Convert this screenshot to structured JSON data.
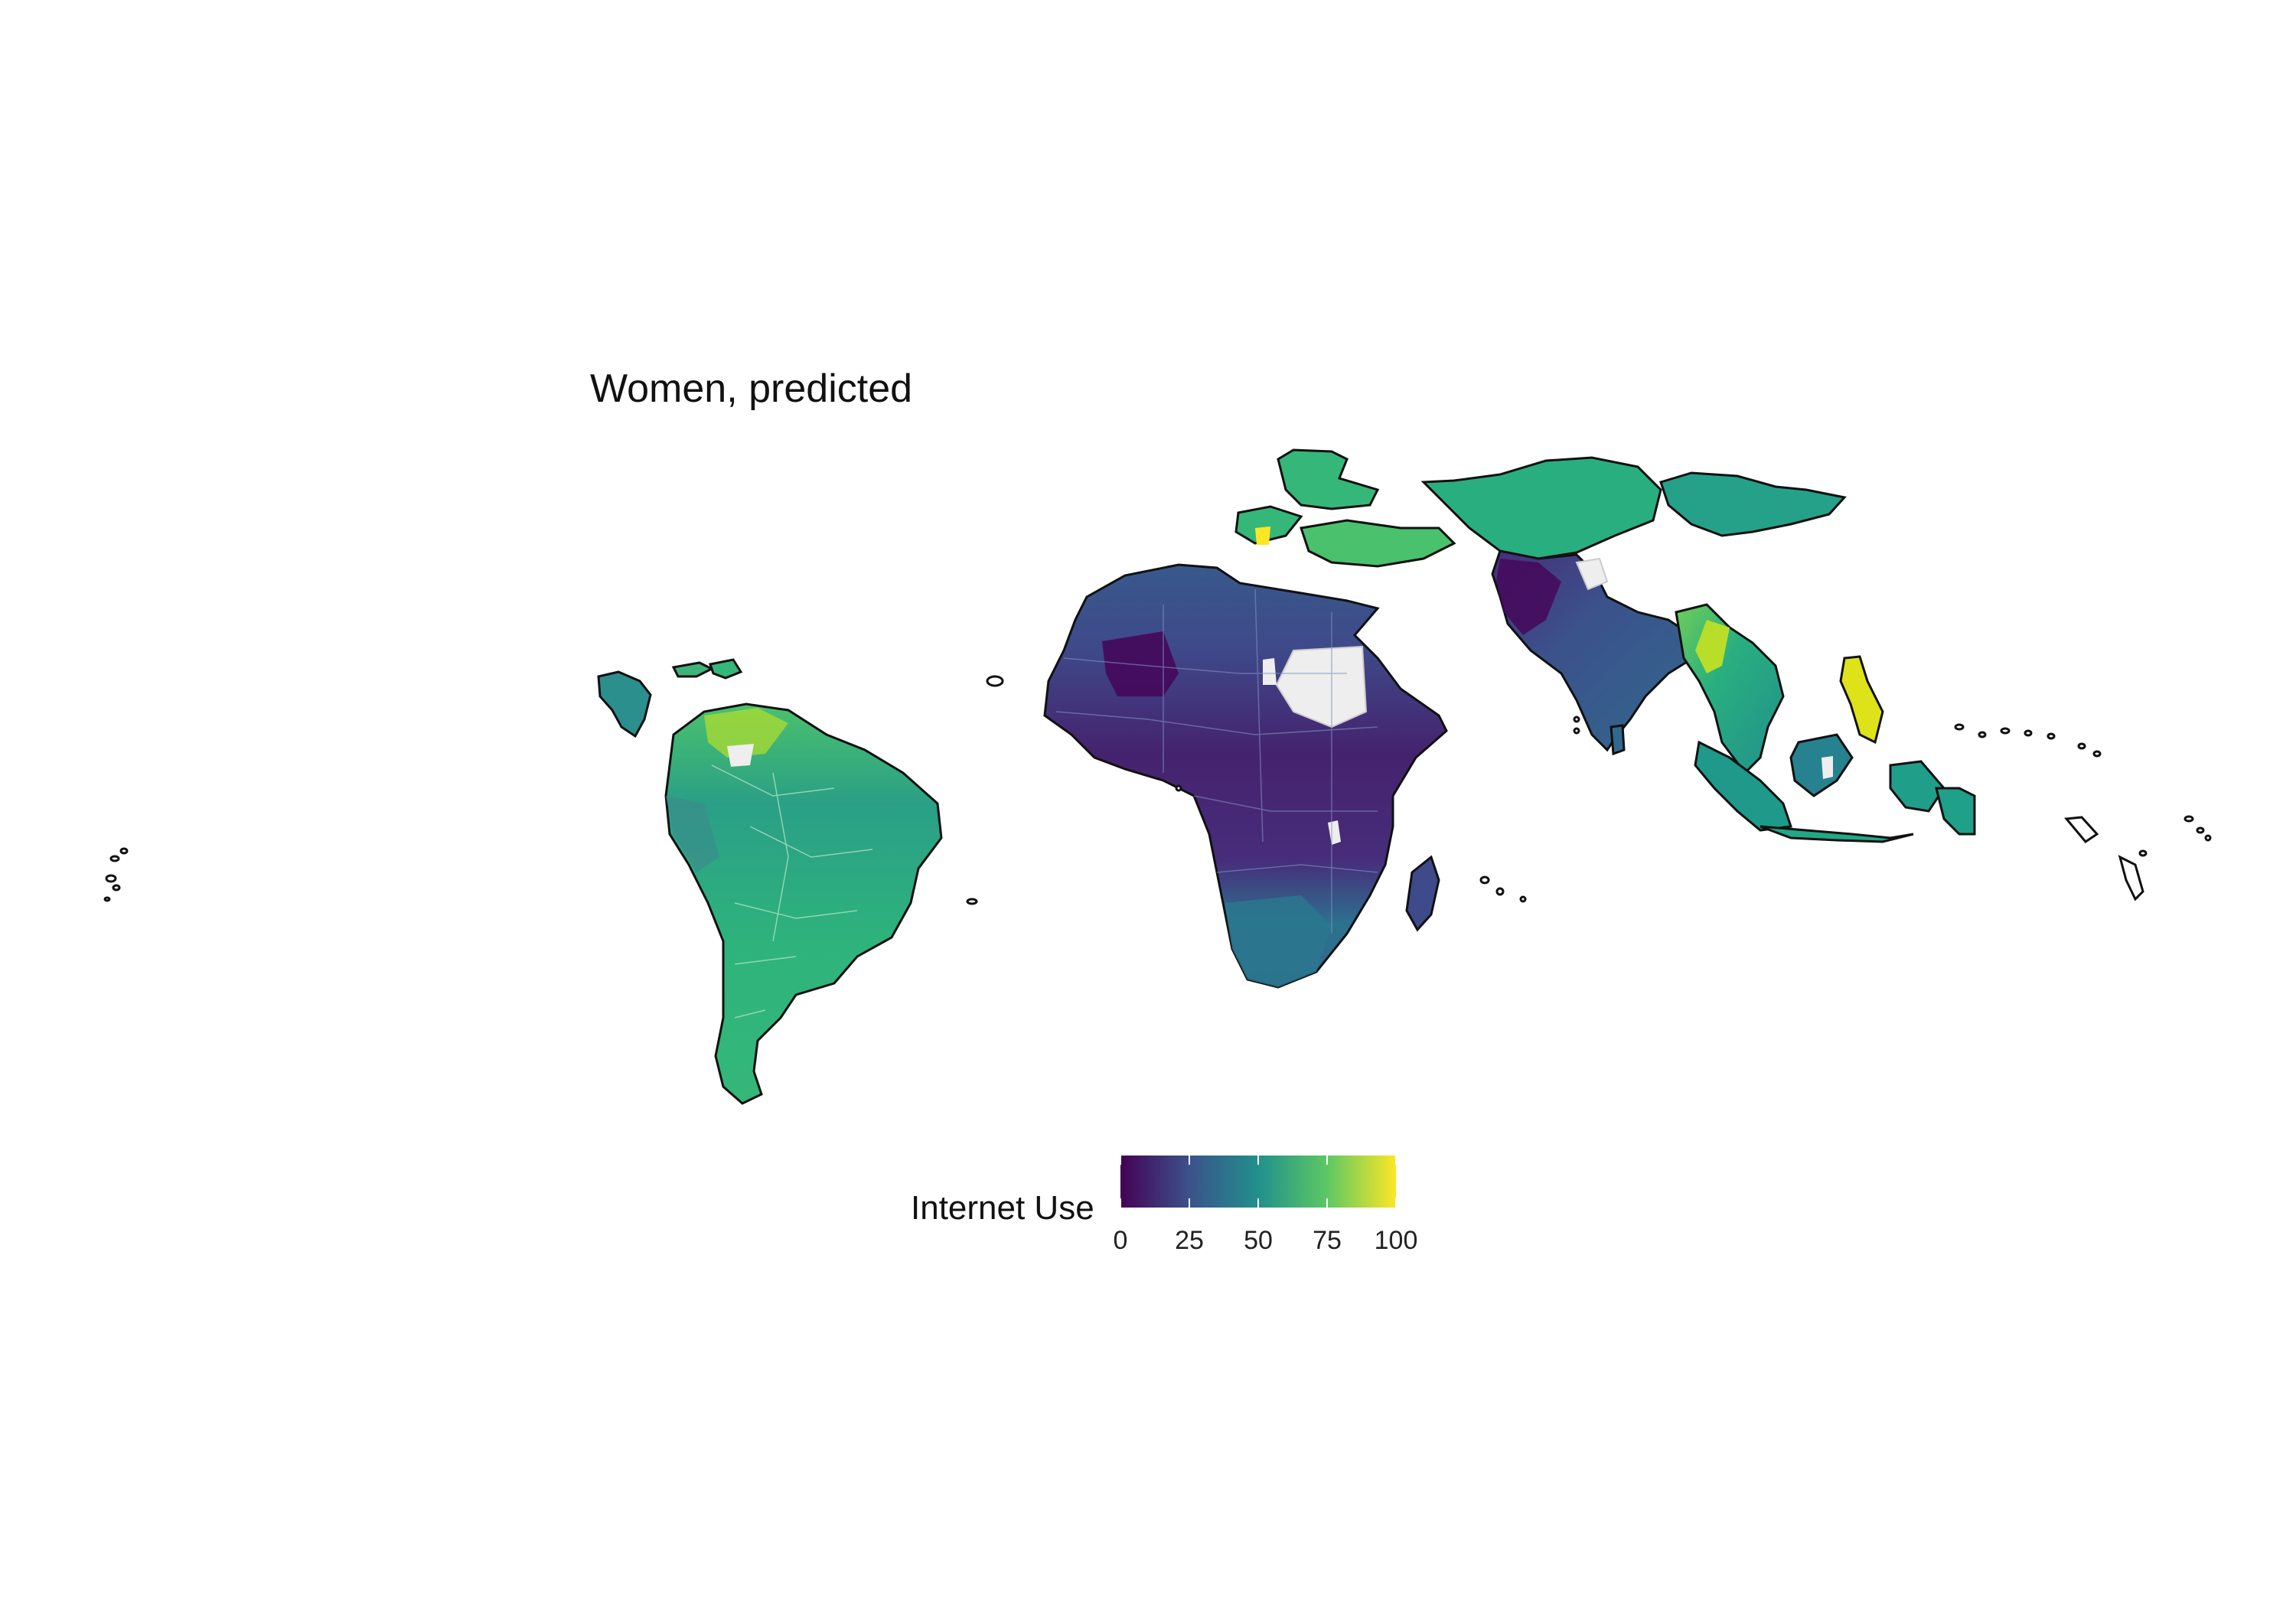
{
  "title": "Women, predicted",
  "legend": {
    "title": "Internet Use",
    "ticks": [
      "0",
      "25",
      "50",
      "75",
      "100"
    ],
    "tick_values": [
      0,
      25,
      50,
      75,
      100
    ],
    "range": [
      0,
      100
    ],
    "colors": [
      "#440154",
      "#3b528b",
      "#21908c",
      "#5dc863",
      "#fde725"
    ]
  },
  "map": {
    "no_data_color": "#eeeeee",
    "outline_color": "#111111",
    "regions": [
      {
        "name": "South America",
        "value": 60
      },
      {
        "name": "Africa",
        "value": 22
      },
      {
        "name": "Europe & Central Asia",
        "value": 60
      },
      {
        "name": "South Asia",
        "value": 35
      },
      {
        "name": "Southeast Asia",
        "value": 55
      }
    ]
  }
}
